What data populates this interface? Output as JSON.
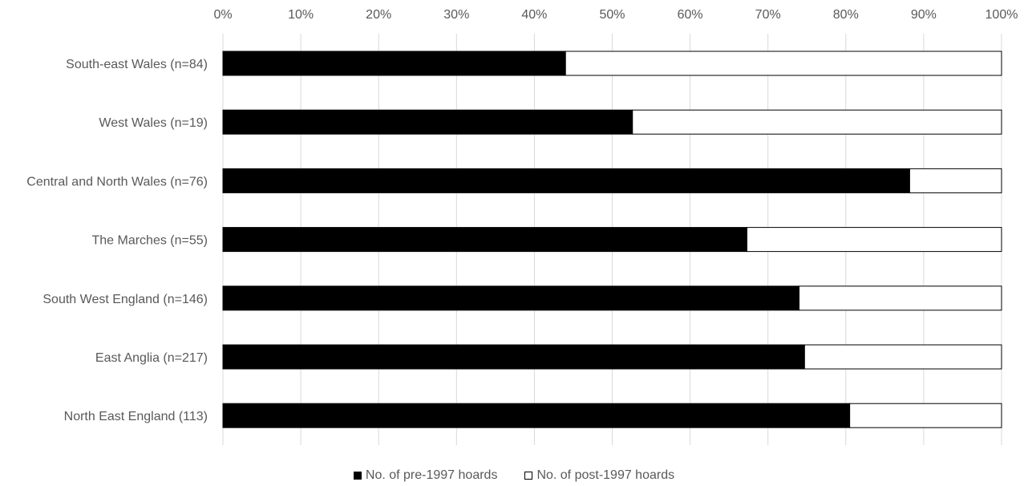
{
  "chart_data": {
    "type": "bar",
    "orientation": "horizontal",
    "stacked": "100%",
    "categories": [
      "South-east Wales (n=84)",
      "West Wales (n=19)",
      "Central and North Wales (n=76)",
      "The Marches (n=55)",
      "South West England (n=146)",
      "East Anglia (n=217)",
      "North East England (113)"
    ],
    "series": [
      {
        "name": "No. of pre-1997 hoards",
        "color": "#000000",
        "values": [
          44.0,
          52.6,
          88.2,
          67.3,
          74.0,
          74.7,
          80.5
        ]
      },
      {
        "name": "No. of post-1997 hoards",
        "color": "#ffffff",
        "values": [
          56.0,
          47.4,
          11.8,
          32.7,
          26.0,
          25.3,
          19.5
        ]
      }
    ],
    "xlim": [
      0,
      100
    ],
    "xticks": [
      "0%",
      "10%",
      "20%",
      "30%",
      "40%",
      "50%",
      "60%",
      "70%",
      "80%",
      "90%",
      "100%"
    ],
    "grid": "vertical",
    "legend_position": "bottom"
  }
}
